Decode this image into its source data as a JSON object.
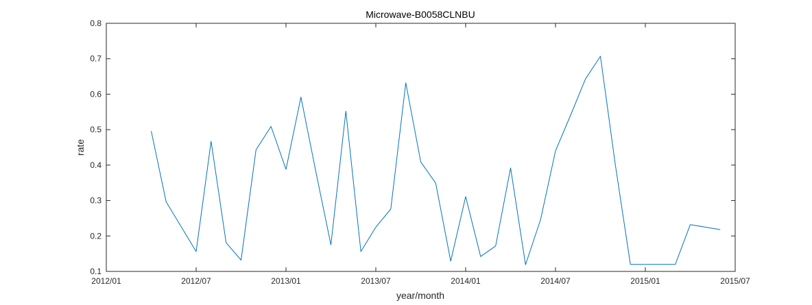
{
  "chart_data": {
    "type": "line",
    "title": "Microwave-B0058CLNBU",
    "xlabel": "year/month",
    "ylabel": "rate",
    "x_ticks": [
      "2012/01",
      "2012/07",
      "2013/01",
      "2013/07",
      "2014/01",
      "2014/07",
      "2015/01",
      "2015/07"
    ],
    "y_ticks": [
      "0.1",
      "0.2",
      "0.3",
      "0.4",
      "0.5",
      "0.6",
      "0.7",
      "0.8"
    ],
    "xlim": [
      "2012/01",
      "2015/07"
    ],
    "ylim": [
      0.1,
      0.8
    ],
    "grid": false,
    "series": [
      {
        "color": "#0072BD",
        "x": [
          "2012/04",
          "2012/05",
          "2012/06",
          "2012/07",
          "2012/08",
          "2012/09",
          "2012/10",
          "2012/11",
          "2012/12",
          "2013/01",
          "2013/02",
          "2013/03",
          "2013/04",
          "2013/05",
          "2013/06",
          "2013/07",
          "2013/08",
          "2013/09",
          "2013/10",
          "2013/11",
          "2013/12",
          "2014/01",
          "2014/02",
          "2014/03",
          "2014/04",
          "2014/05",
          "2014/06",
          "2014/07",
          "2014/08",
          "2014/09",
          "2014/10",
          "2014/11",
          "2014/12",
          "2015/01",
          "2015/02",
          "2015/03",
          "2015/04",
          "2015/05",
          "2015/06"
        ],
        "y": [
          0.496,
          0.296,
          0.226,
          0.156,
          0.467,
          0.181,
          0.132,
          0.443,
          0.509,
          0.388,
          0.592,
          0.38,
          0.175,
          0.552,
          0.156,
          0.225,
          0.276,
          0.632,
          0.409,
          0.349,
          0.129,
          0.311,
          0.142,
          0.172,
          0.392,
          0.119,
          0.246,
          0.44,
          0.54,
          0.643,
          0.707,
          0.4,
          0.12,
          0.12,
          0.12,
          0.12,
          0.232,
          0.225,
          0.218
        ]
      }
    ]
  }
}
